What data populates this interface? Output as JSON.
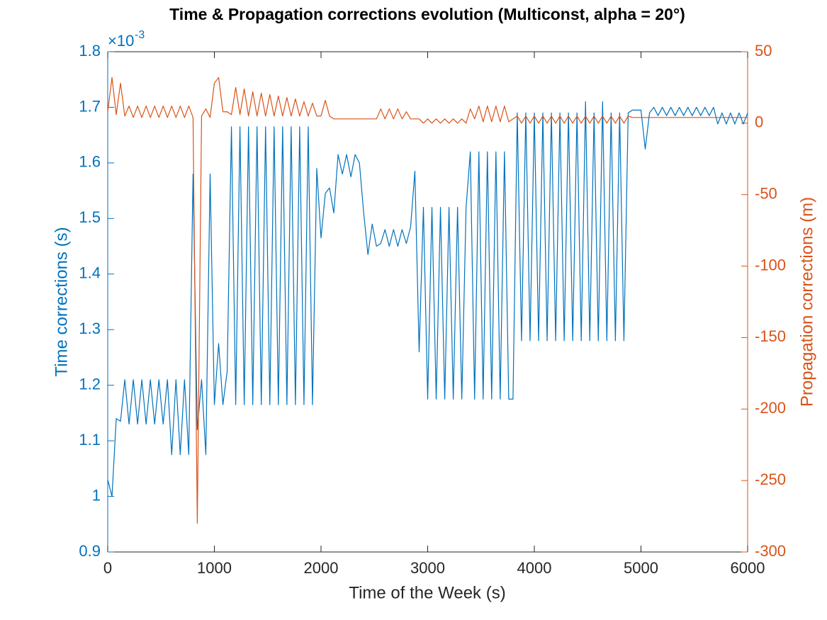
{
  "chart_data": {
    "type": "line",
    "title": "Time & Propagation corrections evolution (Multiconst, alpha = 20°)",
    "x_label": "Time of the Week (s)",
    "y_label": "Time corrections (s)",
    "y2_label": "Propagation corrections (m)",
    "y_multiplier_base": "×10",
    "y_multiplier_exponent": "-3",
    "xlim": [
      0,
      6000
    ],
    "xticks": [
      0,
      1000,
      2000,
      3000,
      4000,
      5000,
      6000
    ],
    "ylim": [
      0.9,
      1.8
    ],
    "yticks": [
      0.9,
      1,
      1.1,
      1.2,
      1.3,
      1.4,
      1.5,
      1.6,
      1.7,
      1.8
    ],
    "y2lim": [
      -300,
      50
    ],
    "y2ticks": [
      -300,
      -250,
      -200,
      -150,
      -100,
      -50,
      0,
      50
    ],
    "x": [
      0,
      40,
      80,
      120,
      160,
      200,
      240,
      280,
      320,
      360,
      400,
      440,
      480,
      520,
      560,
      600,
      640,
      680,
      720,
      760,
      800,
      840,
      880,
      920,
      960,
      1000,
      1040,
      1080,
      1120,
      1160,
      1200,
      1240,
      1280,
      1320,
      1360,
      1400,
      1440,
      1480,
      1520,
      1560,
      1600,
      1640,
      1680,
      1720,
      1760,
      1800,
      1840,
      1880,
      1920,
      1960,
      2000,
      2040,
      2080,
      2120,
      2160,
      2200,
      2240,
      2280,
      2320,
      2360,
      2400,
      2440,
      2480,
      2520,
      2560,
      2600,
      2640,
      2680,
      2720,
      2760,
      2800,
      2840,
      2880,
      2920,
      2960,
      3000,
      3040,
      3080,
      3120,
      3160,
      3200,
      3240,
      3280,
      3320,
      3360,
      3400,
      3440,
      3480,
      3520,
      3560,
      3600,
      3640,
      3680,
      3720,
      3760,
      3800,
      3840,
      3880,
      3920,
      3960,
      4000,
      4040,
      4080,
      4120,
      4160,
      4200,
      4240,
      4280,
      4320,
      4360,
      4400,
      4440,
      4480,
      4520,
      4560,
      4600,
      4640,
      4680,
      4720,
      4760,
      4800,
      4840,
      4880,
      4920,
      4960,
      5000,
      5040,
      5080,
      5120,
      5160,
      5200,
      5240,
      5280,
      5320,
      5360,
      5400,
      5440,
      5480,
      5520,
      5560,
      5600,
      5640,
      5680,
      5720,
      5760,
      5800,
      5840,
      5880,
      5920,
      5960,
      6000
    ],
    "series": [
      {
        "name": "Time corrections",
        "color": "#0072BD",
        "axis": "y",
        "values": [
          1.03,
          1,
          1.14,
          1.135,
          1.21,
          1.13,
          1.21,
          1.13,
          1.21,
          1.13,
          1.21,
          1.13,
          1.21,
          1.13,
          1.21,
          1.075,
          1.21,
          1.075,
          1.21,
          1.075,
          1.58,
          1.12,
          1.21,
          1.075,
          1.58,
          1.165,
          1.275,
          1.165,
          1.225,
          1.665,
          1.165,
          1.665,
          1.165,
          1.665,
          1.165,
          1.665,
          1.165,
          1.665,
          1.165,
          1.665,
          1.165,
          1.665,
          1.165,
          1.665,
          1.165,
          1.665,
          1.165,
          1.665,
          1.165,
          1.59,
          1.465,
          1.545,
          1.555,
          1.51,
          1.615,
          1.58,
          1.615,
          1.575,
          1.615,
          1.6,
          1.51,
          1.435,
          1.49,
          1.45,
          1.455,
          1.48,
          1.45,
          1.48,
          1.45,
          1.48,
          1.455,
          1.485,
          1.585,
          1.26,
          1.52,
          1.175,
          1.52,
          1.175,
          1.52,
          1.175,
          1.52,
          1.175,
          1.52,
          1.175,
          1.52,
          1.62,
          1.175,
          1.62,
          1.175,
          1.62,
          1.175,
          1.62,
          1.175,
          1.62,
          1.175,
          1.175,
          1.69,
          1.28,
          1.69,
          1.28,
          1.69,
          1.28,
          1.69,
          1.28,
          1.69,
          1.28,
          1.69,
          1.28,
          1.69,
          1.28,
          1.69,
          1.28,
          1.71,
          1.28,
          1.69,
          1.28,
          1.71,
          1.28,
          1.69,
          1.28,
          1.69,
          1.28,
          1.69,
          1.695,
          1.695,
          1.695,
          1.625,
          1.69,
          1.7,
          1.685,
          1.7,
          1.685,
          1.7,
          1.685,
          1.7,
          1.685,
          1.7,
          1.685,
          1.7,
          1.685,
          1.7,
          1.685,
          1.7,
          1.67,
          1.69,
          1.67,
          1.69,
          1.67,
          1.69,
          1.67,
          1.69
        ]
      },
      {
        "name": "Propagation corrections",
        "color": "#D95319",
        "axis": "y2",
        "values": [
          8,
          32,
          6,
          28,
          5,
          12,
          4,
          12,
          4,
          12,
          4,
          12,
          4,
          12,
          4,
          12,
          4,
          12,
          4,
          12,
          4,
          -280,
          5,
          10,
          4,
          28,
          32,
          8,
          8,
          6,
          25,
          6,
          24,
          5,
          22,
          5,
          21,
          5,
          20,
          5,
          19,
          5,
          18,
          5,
          17,
          5,
          15,
          5,
          14,
          5,
          5,
          16,
          5,
          3,
          3,
          3,
          3,
          3,
          3,
          3,
          3,
          3,
          3,
          3,
          10,
          3,
          10,
          3,
          10,
          3,
          8,
          3,
          3,
          3,
          0,
          3,
          0,
          3,
          0,
          3,
          0,
          3,
          0,
          3,
          0,
          10,
          3,
          12,
          1,
          12,
          1,
          12,
          1,
          12,
          1,
          3,
          5,
          0,
          5,
          0,
          5,
          0,
          5,
          0,
          5,
          0,
          5,
          0,
          5,
          0,
          5,
          0,
          5,
          0,
          5,
          0,
          5,
          0,
          5,
          0,
          5,
          0,
          5,
          4,
          4,
          4,
          4,
          4,
          4,
          4,
          4,
          4,
          4,
          4,
          4,
          4,
          4,
          4,
          4,
          4,
          4,
          4,
          4,
          4,
          4,
          4,
          4,
          4,
          4,
          4,
          4
        ]
      }
    ]
  }
}
